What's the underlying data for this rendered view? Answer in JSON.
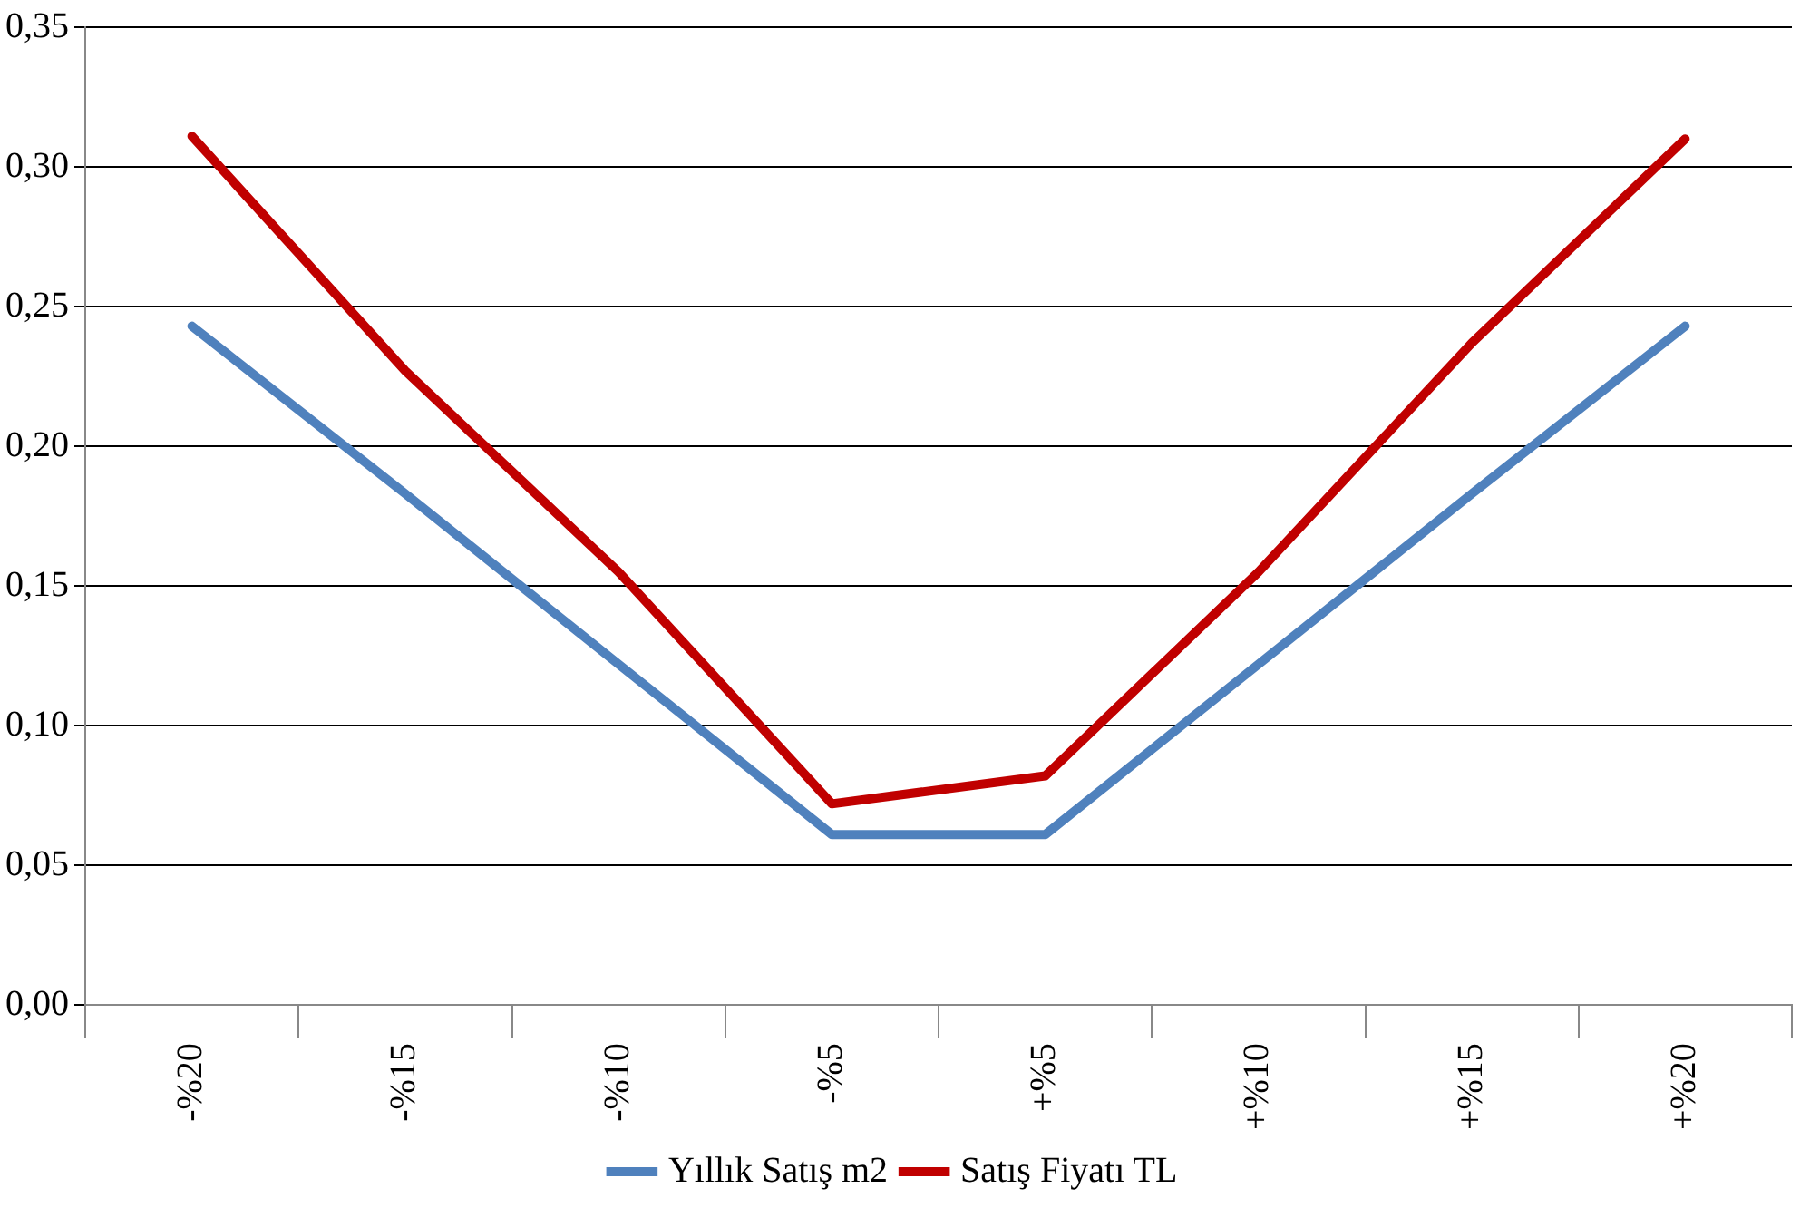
{
  "chart_data": {
    "type": "line",
    "categories": [
      "-%20",
      "-%15",
      "-%10",
      "-%5",
      "+%5",
      "+%10",
      "+%15",
      "+%20"
    ],
    "series": [
      {
        "name": "Yıllık Satış m2",
        "color": "#4f81bd",
        "values": [
          0.243,
          0.183,
          0.122,
          0.061,
          0.061,
          0.122,
          0.183,
          0.243
        ]
      },
      {
        "name": "Satış Fiyatı TL",
        "color": "#c00000",
        "values": [
          0.311,
          0.227,
          0.155,
          0.072,
          0.082,
          0.155,
          0.237,
          0.31
        ]
      }
    ],
    "ylim": [
      0,
      0.35
    ],
    "yticks": [
      {
        "value": 0,
        "label": "0,00"
      },
      {
        "value": 0.05,
        "label": "0,05"
      },
      {
        "value": 0.1,
        "label": "0,10"
      },
      {
        "value": 0.15,
        "label": "0,15"
      },
      {
        "value": 0.2,
        "label": "0,20"
      },
      {
        "value": 0.25,
        "label": "0,25"
      },
      {
        "value": 0.3,
        "label": "0,30"
      },
      {
        "value": 0.35,
        "label": "0,35"
      }
    ],
    "grid": "y",
    "legend": "bottom",
    "marker": "none",
    "line_style": "solid"
  }
}
